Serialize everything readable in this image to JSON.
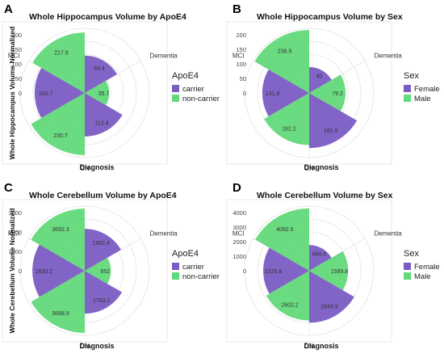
{
  "chart_data": [
    {
      "type": "polar-bar",
      "panel": "A",
      "title": "Whole Hippocampus Volume by ApoE4",
      "xlabel": "Diagnosis",
      "ylabel": "Whole Hippocampus Volume Normalized",
      "categories": [
        "MCI",
        "Dementia",
        "CN"
      ],
      "radial_ticks": [
        "200",
        "150",
        "100",
        "50",
        "0"
      ],
      "rmax": 250,
      "legend": {
        "title": "ApoE4",
        "placement": "right"
      },
      "series": [
        {
          "name": "carrier",
          "color": "#7b5cc4",
          "values": [
            150.7,
            83.4,
            113.4
          ]
        },
        {
          "name": "non-carrier",
          "color": "#62d97a",
          "values": [
            217.9,
            35.7,
            230.7
          ]
        }
      ]
    },
    {
      "type": "polar-bar",
      "panel": "B",
      "title": "Whole Hippocampus Volume by Sex",
      "xlabel": "Diagnosis",
      "ylabel": "",
      "categories": [
        "MCI",
        "Dementia",
        "CN"
      ],
      "radial_ticks": [
        "200",
        "150",
        "100",
        "50",
        "0"
      ],
      "rmax": 250,
      "legend": {
        "title": "Sex",
        "placement": "right"
      },
      "series": [
        {
          "name": "Female",
          "color": "#7b5cc4",
          "values": [
            131.8,
            40,
            181.9
          ]
        },
        {
          "name": "Male",
          "color": "#62d97a",
          "values": [
            236.9,
            79.2,
            162.2
          ]
        }
      ]
    },
    {
      "type": "polar-bar",
      "panel": "C",
      "title": "Whole Cerebellum Volume by ApoE4",
      "xlabel": "Diagnosis",
      "ylabel": "Whole Cerebellum Volume Normalized",
      "categories": [
        "MCI",
        "Dementia",
        "CN"
      ],
      "radial_ticks": [
        "3000",
        "2000",
        "1000",
        "0"
      ],
      "rmax": 4000,
      "legend": {
        "title": "ApoE4",
        "placement": "right"
      },
      "series": [
        {
          "name": "carrier",
          "color": "#7b5cc4",
          "values": [
            2630.2,
            1682.4,
            1763.2
          ]
        },
        {
          "name": "non-carrier",
          "color": "#62d97a",
          "values": [
            3692.3,
            652,
            3688.9
          ]
        }
      ]
    },
    {
      "type": "polar-bar",
      "panel": "D",
      "title": "Whole Cerebellum Volume by Sex",
      "xlabel": "Diagnosis",
      "ylabel": "",
      "categories": [
        "MCI",
        "Dementia",
        "CN"
      ],
      "radial_ticks": [
        "4000",
        "3000",
        "2000",
        "1000",
        "0"
      ],
      "rmax": 4400,
      "legend": {
        "title": "Sex",
        "placement": "right"
      },
      "series": [
        {
          "name": "Female",
          "color": "#7b5cc4",
          "values": [
            2229.8,
            694.6,
            2849.9
          ]
        },
        {
          "name": "Male",
          "color": "#62d97a",
          "values": [
            4092.6,
            1589.8,
            2602.2
          ]
        }
      ]
    }
  ]
}
